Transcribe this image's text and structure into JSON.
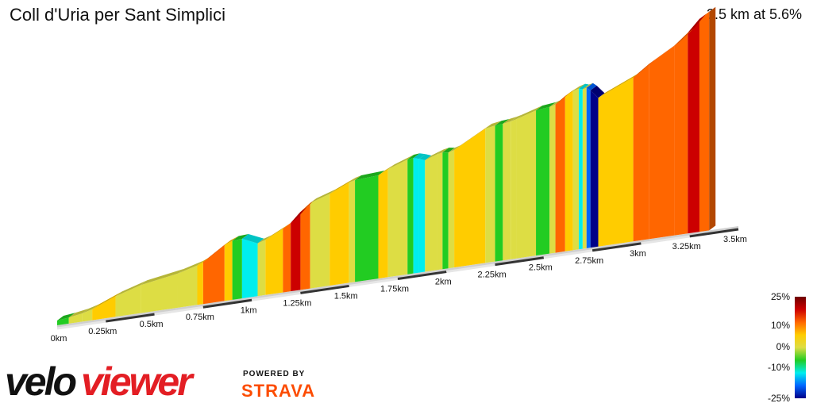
{
  "header": {
    "title": "Coll d'Uria per Sant Simplici",
    "summary": "3.5 km at 5.6%"
  },
  "branding": {
    "logo_velo": "velo",
    "logo_viewer": "viewer",
    "powered_by": "POWERED BY",
    "strava": "STRAVA",
    "logo_color": "#e31e24",
    "strava_color": "#fc4c02"
  },
  "legend": {
    "labels": [
      "25%",
      "10%",
      "0%",
      "-10%",
      "-25%"
    ],
    "colors": [
      "#6e0000",
      "#cc0000",
      "#ff6600",
      "#ffcc00",
      "#dddd44",
      "#22cc22",
      "#00eeee",
      "#0066ff",
      "#000088"
    ]
  },
  "chart_data": {
    "type": "area",
    "title": "Coll d'Uria per Sant Simplici",
    "distance_unit": "km",
    "x_ticks": [
      "0km",
      "0.25km",
      "0.5km",
      "0.75km",
      "1km",
      "1.25km",
      "1.5km",
      "1.75km",
      "2km",
      "2.25km",
      "2.5km",
      "2.75km",
      "3km",
      "3.25km",
      "3.5km"
    ],
    "x_range": [
      0,
      3.5
    ],
    "color_scale": "gradient % (-25% to 25%)",
    "segments": [
      {
        "start": 0.0,
        "end": 0.06,
        "gradient": 2.0
      },
      {
        "start": 0.06,
        "end": 0.13,
        "gradient": 3.0
      },
      {
        "start": 0.13,
        "end": 0.18,
        "gradient": 5.0
      },
      {
        "start": 0.18,
        "end": 0.3,
        "gradient": 7.5
      },
      {
        "start": 0.3,
        "end": 0.43,
        "gradient": 5.5
      },
      {
        "start": 0.43,
        "end": 0.62,
        "gradient": 3.0
      },
      {
        "start": 0.62,
        "end": 0.72,
        "gradient": 5.0
      },
      {
        "start": 0.72,
        "end": 0.75,
        "gradient": 8.0
      },
      {
        "start": 0.75,
        "end": 0.86,
        "gradient": 12.0
      },
      {
        "start": 0.86,
        "end": 0.9,
        "gradient": 7.0
      },
      {
        "start": 0.9,
        "end": 0.95,
        "gradient": 1.0
      },
      {
        "start": 0.95,
        "end": 1.03,
        "gradient": -8.0
      },
      {
        "start": 1.03,
        "end": 1.07,
        "gradient": 5.5
      },
      {
        "start": 1.07,
        "end": 1.16,
        "gradient": 9.0
      },
      {
        "start": 1.16,
        "end": 1.2,
        "gradient": 11.0
      },
      {
        "start": 1.2,
        "end": 1.25,
        "gradient": 18.0
      },
      {
        "start": 1.25,
        "end": 1.3,
        "gradient": 14.0
      },
      {
        "start": 1.3,
        "end": 1.4,
        "gradient": 6.0
      },
      {
        "start": 1.4,
        "end": 1.5,
        "gradient": 8.0
      },
      {
        "start": 1.5,
        "end": 1.53,
        "gradient": 5.0
      },
      {
        "start": 1.53,
        "end": 1.65,
        "gradient": 1.0
      },
      {
        "start": 1.65,
        "end": 1.7,
        "gradient": 9.0
      },
      {
        "start": 1.7,
        "end": 1.8,
        "gradient": 6.5
      },
      {
        "start": 1.8,
        "end": 1.83,
        "gradient": 1.5
      },
      {
        "start": 1.83,
        "end": 1.86,
        "gradient": -5.0
      },
      {
        "start": 1.86,
        "end": 1.89,
        "gradient": -7.0
      },
      {
        "start": 1.89,
        "end": 1.95,
        "gradient": 6.5
      },
      {
        "start": 1.95,
        "end": 1.98,
        "gradient": 3.5
      },
      {
        "start": 1.98,
        "end": 2.01,
        "gradient": -3.0
      },
      {
        "start": 2.01,
        "end": 2.04,
        "gradient": 5.0
      },
      {
        "start": 2.04,
        "end": 2.2,
        "gradient": 10.0
      },
      {
        "start": 2.2,
        "end": 2.25,
        "gradient": 3.0
      },
      {
        "start": 2.25,
        "end": 2.29,
        "gradient": 1.5
      },
      {
        "start": 2.29,
        "end": 2.33,
        "gradient": 3.0
      },
      {
        "start": 2.33,
        "end": 2.36,
        "gradient": 4.5
      },
      {
        "start": 2.36,
        "end": 2.46,
        "gradient": 5.5
      },
      {
        "start": 2.46,
        "end": 2.53,
        "gradient": 2.0
      },
      {
        "start": 2.53,
        "end": 2.56,
        "gradient": 5.0
      },
      {
        "start": 2.56,
        "end": 2.61,
        "gradient": 13.0
      },
      {
        "start": 2.61,
        "end": 2.65,
        "gradient": 9.0
      },
      {
        "start": 2.65,
        "end": 2.68,
        "gradient": 5.5
      },
      {
        "start": 2.68,
        "end": 2.7,
        "gradient": -6.0
      },
      {
        "start": 2.7,
        "end": 2.72,
        "gradient": 4.0
      },
      {
        "start": 2.72,
        "end": 2.74,
        "gradient": -15.0
      },
      {
        "start": 2.74,
        "end": 2.78,
        "gradient": -20.0
      },
      {
        "start": 2.78,
        "end": 2.96,
        "gradient": 8.0
      },
      {
        "start": 2.96,
        "end": 3.04,
        "gradient": 13.0
      },
      {
        "start": 3.04,
        "end": 3.17,
        "gradient": 10.5
      },
      {
        "start": 3.17,
        "end": 3.24,
        "gradient": 15.0
      },
      {
        "start": 3.24,
        "end": 3.3,
        "gradient": 19.0
      },
      {
        "start": 3.3,
        "end": 3.35,
        "gradient": 11.0
      }
    ]
  }
}
